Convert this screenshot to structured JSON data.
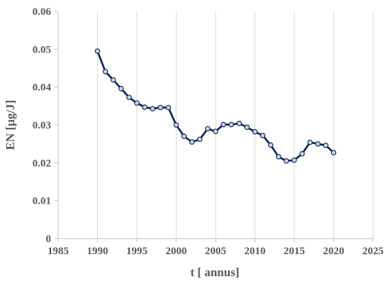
{
  "chart_data": {
    "type": "line",
    "xlabel": "t [ annus]",
    "ylabel": "EN [µg/J]",
    "xlim": [
      1985,
      2025
    ],
    "ylim": [
      0,
      0.06
    ],
    "x_ticks": [
      1985,
      1990,
      1995,
      2000,
      2005,
      2010,
      2015,
      2020,
      2025
    ],
    "y_ticks": [
      0,
      0.01,
      0.02,
      0.03,
      0.04,
      0.05,
      0.06
    ],
    "x_tick_labels": [
      "1985",
      "1990",
      "1995",
      "2000",
      "2005",
      "2010",
      "2015",
      "2020",
      "2025"
    ],
    "y_tick_labels": [
      "0",
      "0.01",
      "0.02",
      "0.03",
      "0.04",
      "0.05",
      "0.06"
    ],
    "grid": "vertical",
    "legend": "none",
    "colors": {
      "line": "#0b1f4f",
      "marker_fill": "#bdd7ee",
      "marker_stroke": "#0b1f4f",
      "grid": "#d9d9d9",
      "axis": "#bfbfbf",
      "text": "#595959"
    },
    "series": [
      {
        "x": [
          1990,
          1991,
          1992,
          1993,
          1994,
          1995,
          1996,
          1997,
          1998,
          1999,
          2000,
          2001,
          2002,
          2003,
          2004,
          2005,
          2006,
          2007,
          2008,
          2009,
          2010,
          2011,
          2012,
          2013,
          2014,
          2015,
          2016,
          2017,
          2018,
          2019,
          2020
        ],
        "values": [
          0.0495,
          0.0441,
          0.0419,
          0.0396,
          0.0373,
          0.0358,
          0.0347,
          0.0343,
          0.0346,
          0.0346,
          0.03,
          0.027,
          0.0255,
          0.0262,
          0.029,
          0.0283,
          0.0301,
          0.0301,
          0.0304,
          0.0294,
          0.0282,
          0.0272,
          0.0247,
          0.0216,
          0.0205,
          0.0207,
          0.0224,
          0.0254,
          0.025,
          0.0246,
          0.0227
        ]
      }
    ]
  }
}
